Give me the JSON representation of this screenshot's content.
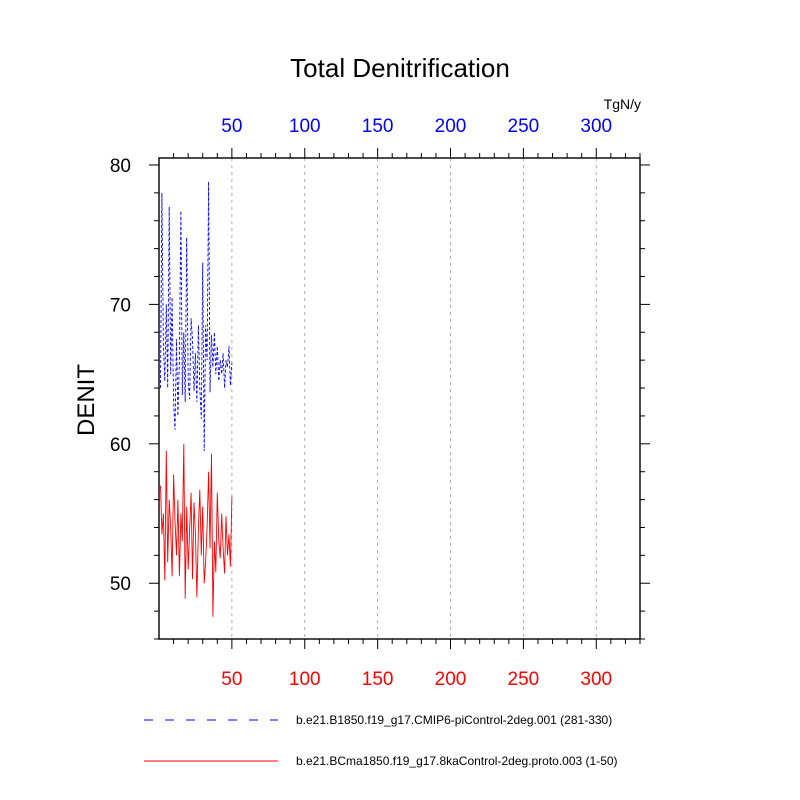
{
  "chart_data": {
    "type": "line",
    "title": "Total Denitrification",
    "ylabel": "DENIT",
    "units": "TgN/y",
    "xlim": [
      0,
      330
    ],
    "ylim": [
      46,
      80.5
    ],
    "xticks_major": [
      50,
      100,
      150,
      200,
      250,
      300
    ],
    "yticks_major": [
      50,
      60,
      70,
      80
    ],
    "grid": "vertical dashed at major x ticks",
    "top_axis_color": "#0000ff",
    "bottom_axis_color": "#ff0000",
    "series": [
      {
        "name": "b.e21.B1850.f19_g17.CMIP6-piControl-2deg.001 (281-330)",
        "color": "#0000ff",
        "style": "dashed",
        "axis": "top",
        "x": [
          1,
          2,
          3,
          4,
          5,
          6,
          7,
          8,
          9,
          10,
          11,
          12,
          13,
          14,
          15,
          16,
          17,
          18,
          19,
          20,
          21,
          22,
          23,
          24,
          25,
          26,
          27,
          28,
          29,
          30,
          31,
          32,
          33,
          34,
          35,
          36,
          37,
          38,
          39,
          40,
          41,
          42,
          43,
          44,
          45,
          46,
          47,
          48,
          49,
          50
        ],
        "values": [
          64.0,
          78.0,
          67.0,
          64.5,
          70.0,
          64.0,
          77.0,
          65.0,
          70.5,
          63.0,
          61.0,
          67.5,
          62.0,
          66.0,
          76.7,
          63.5,
          68.0,
          63.0,
          74.8,
          64.5,
          63.2,
          69.0,
          67.5,
          63.8,
          66.5,
          63.0,
          68.5,
          64.0,
          61.8,
          73.0,
          59.5,
          68.5,
          66.0,
          78.8,
          63.7,
          67.8,
          65.5,
          68.0,
          65.0,
          67.0,
          64.5,
          66.0,
          65.0,
          66.5,
          64.0,
          66.0,
          65.5,
          67.0,
          64.2,
          65.8
        ]
      },
      {
        "name": "b.e21.BCma1850.f19_g17.8kaControl-2deg.proto.003 (1-50)",
        "color": "#ff0000",
        "style": "solid",
        "axis": "bottom",
        "x": [
          1,
          2,
          3,
          4,
          5,
          6,
          7,
          8,
          9,
          10,
          11,
          12,
          13,
          14,
          15,
          16,
          17,
          18,
          19,
          20,
          21,
          22,
          23,
          24,
          25,
          26,
          27,
          28,
          29,
          30,
          31,
          32,
          33,
          34,
          35,
          36,
          37,
          38,
          39,
          40,
          41,
          42,
          43,
          44,
          45,
          46,
          47,
          48,
          49,
          50
        ],
        "values": [
          57.0,
          53.5,
          55.0,
          50.2,
          59.5,
          51.5,
          56.0,
          54.0,
          50.5,
          57.8,
          54.5,
          52.0,
          56.0,
          50.5,
          55.0,
          53.0,
          60.0,
          48.9,
          55.5,
          51.0,
          53.8,
          56.5,
          50.3,
          55.8,
          53.5,
          49.0,
          54.0,
          56.7,
          52.0,
          55.5,
          50.0,
          51.5,
          54.0,
          58.0,
          52.5,
          59.3,
          47.6,
          53.0,
          50.8,
          56.5,
          53.0,
          51.8,
          55.0,
          52.5,
          50.7,
          54.8,
          52.0,
          53.5,
          51.2,
          56.2
        ]
      }
    ]
  }
}
